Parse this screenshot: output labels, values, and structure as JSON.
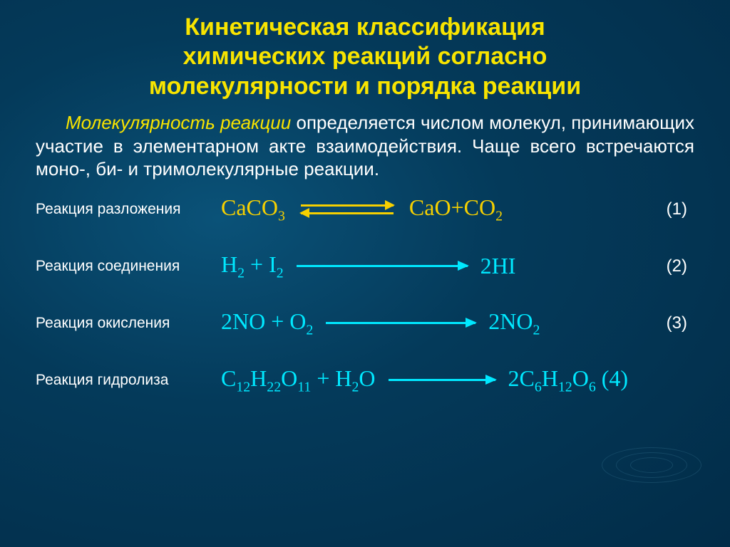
{
  "colors": {
    "title": "#f8e400",
    "intro_lead": "#f8e400",
    "intro_body": "#ffffff",
    "label": "#ffffff",
    "eq_yellow": "#f6d000",
    "eq_cyan": "#00e8ff",
    "num": "#ffffff"
  },
  "title": {
    "line1": "Кинетическая классификация",
    "line2": "химических реакций согласно",
    "line3": "молекулярности и порядка реакции"
  },
  "intro": {
    "lead": "Молекулярность реакции",
    "body1": " определяется числом молекул, принимающих участие в элементарном акте взаимодействия. Чаще всего встречаются моно-, би- и тримолекулярные реакции."
  },
  "reactions": [
    {
      "label": "Реакция разложения",
      "lhs_html": "CaCO<span class='sub'>3</span>",
      "rhs_html": "CaO+CO<span class='sub'>2</span>",
      "arrow": "equil",
      "color": "eq_yellow",
      "arrow_width": 130,
      "num": "(1)"
    },
    {
      "label": "Реакция соединения",
      "lhs_html": "H<span class='sub'>2</span> + I<span class='sub'>2</span>",
      "rhs_html": "2HI",
      "arrow": "long",
      "color": "eq_cyan",
      "arrow_width": 240,
      "num": "(2)"
    },
    {
      "label": "Реакция окисления",
      "lhs_html": "2NO + O<span class='sub'>2</span>",
      "rhs_html": "2NO<span class='sub'>2</span>",
      "arrow": "long",
      "color": "eq_cyan",
      "arrow_width": 210,
      "num": "(3)"
    },
    {
      "label": "Реакция гидролиза",
      "lhs_html": "C<span class='sub'>12</span>H<span class='sub'>22</span>O<span class='sub'>11</span> + H<span class='sub'>2</span>O",
      "rhs_html": "2C<span class='sub'>6</span>H<span class='sub'>12</span>O<span class='sub'>6</span> (4)",
      "arrow": "long",
      "color": "eq_cyan",
      "arrow_width": 150,
      "num": ""
    }
  ]
}
